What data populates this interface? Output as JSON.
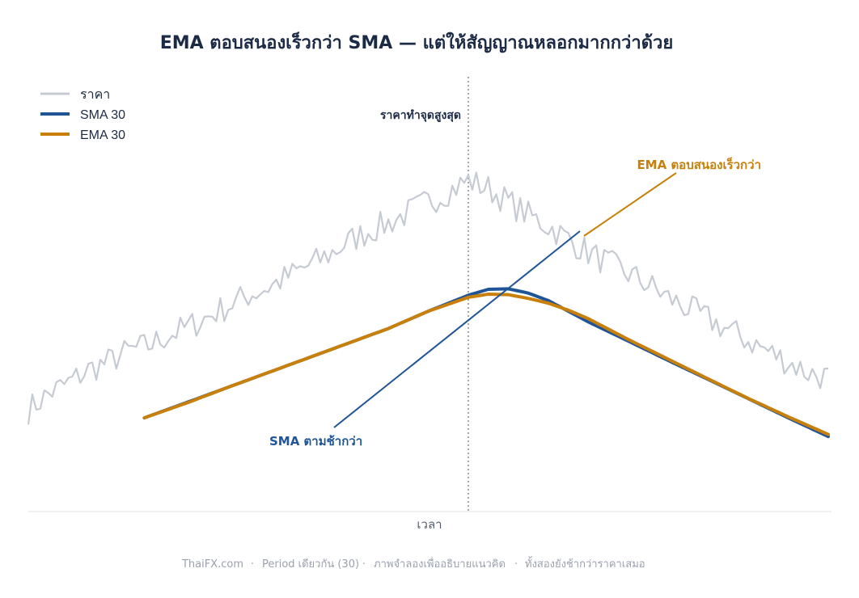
{
  "chart_data": {
    "type": "line",
    "title": "EMA ตอบสนองเร็วกว่า SMA — แต่ให้สัญญาณหลอกมากกว่าด้วย",
    "xlabel": "เวลา",
    "ylabel": "",
    "grid": false,
    "legend_position": "top-left",
    "x_range": [
      0,
      200
    ],
    "peak_index": 110,
    "series": [
      {
        "name": "ราคา",
        "color": "#c6cbd3",
        "x": [
          0,
          5,
          10,
          15,
          20,
          25,
          30,
          35,
          40,
          45,
          50,
          55,
          60,
          65,
          70,
          75,
          80,
          85,
          90,
          95,
          100,
          105,
          110,
          115,
          120,
          125,
          130,
          135,
          140,
          145,
          150,
          155,
          160,
          165,
          170,
          175,
          180,
          185,
          190,
          195,
          200
        ],
        "values": [
          16,
          22,
          26,
          31,
          34,
          38,
          40,
          44,
          47,
          51,
          55,
          59,
          62,
          66,
          70,
          74,
          79,
          83,
          86,
          90,
          94,
          98,
          102,
          99,
          94,
          89,
          85,
          80,
          75,
          71,
          67,
          63,
          58,
          54,
          50,
          46,
          42,
          38,
          34,
          30,
          28
        ]
      },
      {
        "name": "SMA 30",
        "color": "#1f5597",
        "x": [
          29,
          40,
          50,
          60,
          70,
          80,
          90,
          100,
          110,
          115,
          120,
          125,
          130,
          135,
          140,
          150,
          160,
          170,
          180,
          190,
          200
        ],
        "values": [
          13,
          19,
          24.5,
          30,
          35.5,
          41,
          46.5,
          53,
          59,
          61.2,
          61.4,
          59.8,
          57,
          53,
          49,
          41.8,
          34.5,
          27.4,
          20.2,
          13,
          6
        ]
      },
      {
        "name": "EMA 30",
        "color": "#c8800a",
        "x": [
          29,
          40,
          50,
          60,
          70,
          80,
          90,
          100,
          110,
          115,
          120,
          125,
          130,
          135,
          140,
          150,
          160,
          170,
          180,
          190,
          200
        ],
        "values": [
          13,
          18.8,
          24.5,
          30,
          35.5,
          41,
          46.5,
          53,
          58.2,
          59.4,
          59.2,
          57.8,
          56,
          53.4,
          50.2,
          42.4,
          35,
          27.6,
          20.3,
          13.4,
          6.8
        ]
      }
    ],
    "annotations": {
      "peak": "ราคาทำจุดสูงสุด",
      "ema": "EMA ตอบสนองเร็วกว่า",
      "sma": "SMA ตามช้ากว่า"
    }
  },
  "footer": {
    "site": "ThaiFX.com",
    "period": "Period เดียวกัน (30)",
    "note": "ภาพจำลองเพื่ออธิบายแนวคิด",
    "caption": "ทั้งสองยังช้ากว่าราคาเสมอ"
  }
}
